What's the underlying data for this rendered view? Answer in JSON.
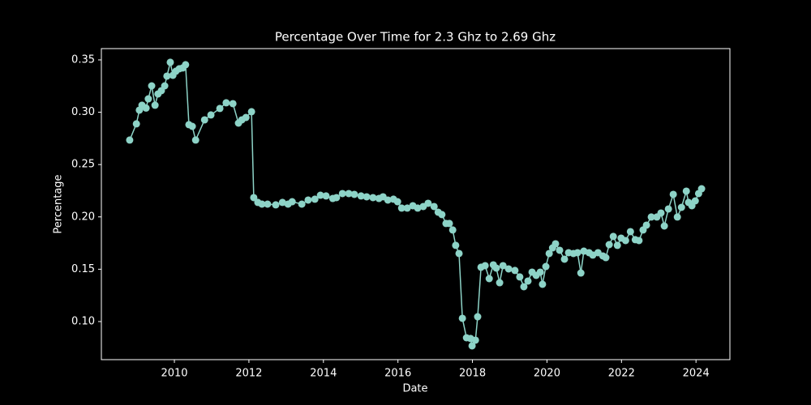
{
  "chart_data": {
    "type": "line",
    "title": "Percentage Over Time for 2.3 Ghz to 2.69 Ghz",
    "x_label": "Date",
    "y_label": "Percentage",
    "series": [
      {
        "color": "#8dd3c7",
        "x": [
          2008.8,
          2008.98,
          2009.06,
          2009.13,
          2009.24,
          2009.3,
          2009.39,
          2009.48,
          2009.56,
          2009.65,
          2009.74,
          2009.8,
          2009.89,
          2009.96,
          2010.04,
          2010.13,
          2010.22,
          2010.3,
          2010.39,
          2010.48,
          2010.57,
          2010.81,
          2010.98,
          2011.22,
          2011.39,
          2011.57,
          2011.72,
          2011.81,
          2011.92,
          2012.07,
          2012.13,
          2012.24,
          2012.35,
          2012.5,
          2012.72,
          2012.9,
          2013.05,
          2013.16,
          2013.42,
          2013.59,
          2013.77,
          2013.92,
          2014.07,
          2014.25,
          2014.35,
          2014.51,
          2014.68,
          2014.83,
          2015.01,
          2015.16,
          2015.33,
          2015.49,
          2015.6,
          2015.73,
          2015.88,
          2015.99,
          2016.1,
          2016.25,
          2016.4,
          2016.53,
          2016.68,
          2016.81,
          2016.97,
          2017.08,
          2017.18,
          2017.29,
          2017.38,
          2017.47,
          2017.55,
          2017.64,
          2017.73,
          2017.84,
          2017.95,
          2017.99,
          2018.08,
          2018.14,
          2018.23,
          2018.34,
          2018.45,
          2018.56,
          2018.64,
          2018.73,
          2018.82,
          2018.97,
          2019.14,
          2019.27,
          2019.38,
          2019.49,
          2019.6,
          2019.71,
          2019.82,
          2019.88,
          2019.97,
          2020.06,
          2020.15,
          2020.23,
          2020.34,
          2020.47,
          2020.58,
          2020.71,
          2020.82,
          2020.91,
          2020.99,
          2021.13,
          2021.23,
          2021.37,
          2021.5,
          2021.58,
          2021.67,
          2021.78,
          2021.89,
          2021.99,
          2022.11,
          2022.24,
          2022.37,
          2022.47,
          2022.58,
          2022.67,
          2022.8,
          2022.95,
          2023.06,
          2023.15,
          2023.26,
          2023.39,
          2023.5,
          2023.61,
          2023.74,
          2023.8,
          2023.89,
          2023.98,
          2024.07,
          2024.15
        ],
        "values": [
          0.2734,
          0.2889,
          0.302,
          0.3067,
          0.304,
          0.3128,
          0.3252,
          0.3067,
          0.3175,
          0.3206,
          0.3252,
          0.3345,
          0.3477,
          0.3353,
          0.3392,
          0.3415,
          0.3423,
          0.3454,
          0.2881,
          0.2865,
          0.2734,
          0.2927,
          0.2974,
          0.3036,
          0.309,
          0.3082,
          0.2896,
          0.2927,
          0.295,
          0.3005,
          0.2184,
          0.2138,
          0.2122,
          0.2122,
          0.2115,
          0.2138,
          0.2122,
          0.2145,
          0.2122,
          0.2161,
          0.2169,
          0.2207,
          0.22,
          0.2176,
          0.2184,
          0.2223,
          0.2223,
          0.2215,
          0.22,
          0.2192,
          0.2184,
          0.2176,
          0.2192,
          0.2161,
          0.2169,
          0.2145,
          0.2084,
          0.2084,
          0.2107,
          0.2084,
          0.2099,
          0.213,
          0.2099,
          0.2045,
          0.2022,
          0.1937,
          0.1937,
          0.1875,
          0.1728,
          0.165,
          0.1031,
          0.0845,
          0.0838,
          0.0768,
          0.0822,
          0.1046,
          0.1519,
          0.1534,
          0.141,
          0.1542,
          0.1511,
          0.1371,
          0.1534,
          0.1503,
          0.1488,
          0.1426,
          0.1333,
          0.1387,
          0.1472,
          0.1441,
          0.1472,
          0.1356,
          0.1526,
          0.165,
          0.1704,
          0.1743,
          0.1681,
          0.1596,
          0.1658,
          0.165,
          0.1658,
          0.1464,
          0.1673,
          0.1658,
          0.1635,
          0.1658,
          0.1627,
          0.1611,
          0.1735,
          0.1813,
          0.1728,
          0.1797,
          0.1774,
          0.1859,
          0.1782,
          0.1774,
          0.1875,
          0.1921,
          0.1999,
          0.1999,
          0.2037,
          0.1913,
          0.2076,
          0.2215,
          0.1999,
          0.2091,
          0.2246,
          0.2138,
          0.2107,
          0.2153,
          0.2223,
          0.2269
        ]
      }
    ],
    "xlim": [
      2008.04,
      2024.91
    ],
    "xticks": [
      2010,
      2012,
      2014,
      2016,
      2018,
      2020,
      2022,
      2024
    ],
    "ylim": [
      0.0636,
      0.3608
    ],
    "yticks": [
      {
        "value": 0.1,
        "label": "0.10"
      },
      0.15,
      {
        "value": 0.2,
        "label": "0.20"
      },
      0.25,
      {
        "value": 0.3,
        "label": "0.30"
      },
      0.35
    ]
  }
}
